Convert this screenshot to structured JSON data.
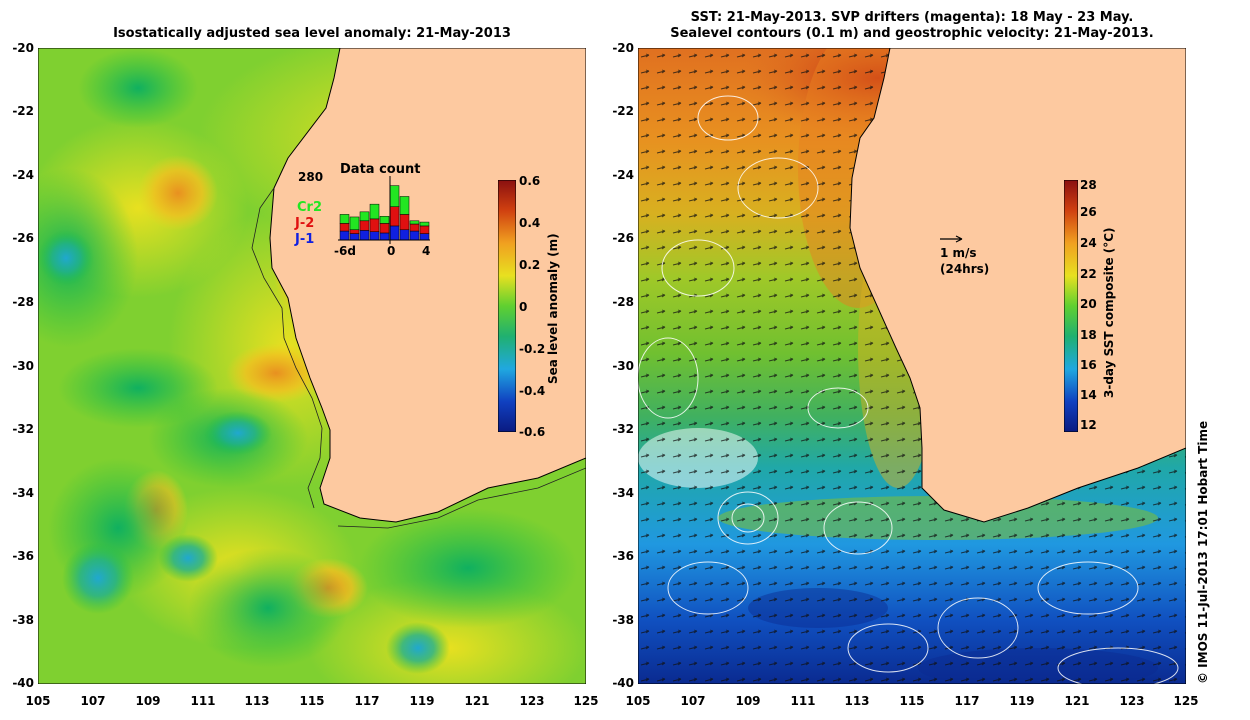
{
  "left_panel": {
    "title": "Isostatically adjusted sea level anomaly: 21-May-2013",
    "x_ticks": [
      "105",
      "107",
      "109",
      "111",
      "113",
      "115",
      "117",
      "119",
      "121",
      "123",
      "125"
    ],
    "y_ticks": [
      "-20",
      "-22",
      "-24",
      "-26",
      "-28",
      "-30",
      "-32",
      "-34",
      "-36",
      "-38",
      "-40"
    ],
    "colorbar": {
      "label": "Sea level anomaly (m)",
      "ticks": [
        "0.6",
        "0.4",
        "0.2",
        "0",
        "-0.2",
        "-0.4",
        "-0.6"
      ]
    },
    "data_count": {
      "title": "Data count",
      "max_value": "280",
      "x_labels": [
        "-6d",
        "0",
        "4"
      ],
      "legend": [
        {
          "label": "Cr2",
          "color": "#22e622"
        },
        {
          "label": "J-2",
          "color": "#e01010"
        },
        {
          "label": "J-1",
          "color": "#1020e0"
        }
      ],
      "bars": [
        {
          "j1": 0.14,
          "j2": 0.26,
          "cr2": 0.4
        },
        {
          "j1": 0.1,
          "j2": 0.16,
          "cr2": 0.36
        },
        {
          "j1": 0.15,
          "j2": 0.3,
          "cr2": 0.44
        },
        {
          "j1": 0.13,
          "j2": 0.33,
          "cr2": 0.56
        },
        {
          "j1": 0.11,
          "j2": 0.26,
          "cr2": 0.37
        },
        {
          "j1": 0.22,
          "j2": 0.52,
          "cr2": 0.85
        },
        {
          "j1": 0.16,
          "j2": 0.4,
          "cr2": 0.68
        },
        {
          "j1": 0.14,
          "j2": 0.25,
          "cr2": 0.3
        },
        {
          "j1": 0.1,
          "j2": 0.22,
          "cr2": 0.28
        }
      ]
    }
  },
  "right_panel": {
    "title_line1": "SST: 21-May-2013. SVP drifters (magenta): 18 May - 23 May.",
    "title_line2": "Sealevel contours (0.1 m) and geostrophic velocity: 21-May-2013.",
    "x_ticks": [
      "105",
      "107",
      "109",
      "111",
      "113",
      "115",
      "117",
      "119",
      "121",
      "123",
      "125"
    ],
    "y_ticks": [
      "-20",
      "-22",
      "-24",
      "-26",
      "-28",
      "-30",
      "-32",
      "-34",
      "-36",
      "-38",
      "-40"
    ],
    "colorbar": {
      "label": "3-day SST composite (°C)",
      "ticks": [
        "28",
        "26",
        "24",
        "22",
        "20",
        "18",
        "16",
        "14",
        "12"
      ]
    },
    "velocity_scale": {
      "label1": "1 m/s",
      "label2": "(24hrs)"
    }
  },
  "credit": "© IMOS 11-Jul-2013 17:01 Hobart Time"
}
